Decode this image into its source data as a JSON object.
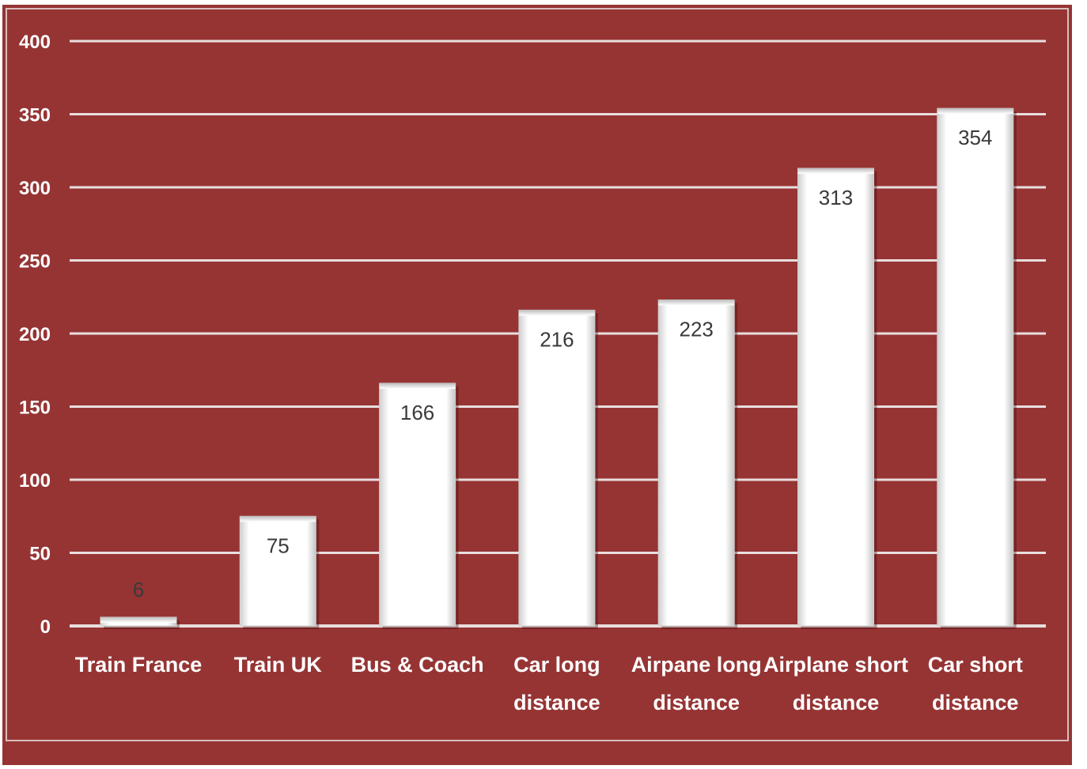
{
  "chart_data": {
    "type": "bar",
    "categories": [
      [
        "Train France"
      ],
      [
        "Train UK"
      ],
      [
        "Bus & Coach"
      ],
      [
        "Car long",
        "distance"
      ],
      [
        "Airpane long",
        "distance"
      ],
      [
        "Airplane short",
        "distance"
      ],
      [
        "Car short",
        "distance"
      ]
    ],
    "values": [
      6,
      75,
      166,
      216,
      223,
      313,
      354
    ],
    "data_labels": [
      "6",
      "75",
      "166",
      "216",
      "223",
      "313",
      "354"
    ],
    "yticks": [
      0,
      50,
      100,
      150,
      200,
      250,
      300,
      350,
      400
    ],
    "ylim": [
      0,
      400
    ],
    "title": "",
    "xlabel": "",
    "ylabel": "",
    "grid": true,
    "legend": "none",
    "colors": {
      "background": "#963434",
      "bar": "#ffffff",
      "gridline": "#e9dede",
      "text": "#ffffff",
      "data_label": "#3a3a3a"
    }
  }
}
